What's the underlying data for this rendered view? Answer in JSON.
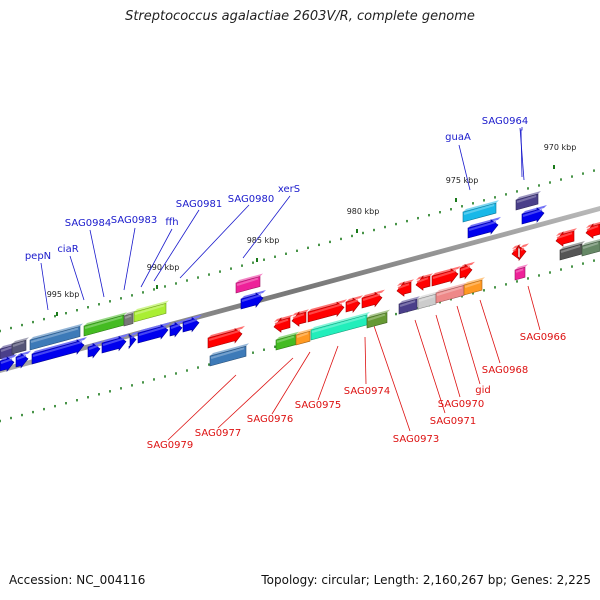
{
  "title": "Streptococcus agalactiae 2603V/R, complete genome",
  "footer": {
    "accession": "Accession: NC_004116",
    "summary": "Topology: circular; Length: 2,160,267 bp; Genes: 2,225"
  },
  "colors": {
    "forward_labels": "#1a1acc",
    "reverse_labels": "#dd1111",
    "backbone": "#808080",
    "ticks": "#1a7a1a"
  },
  "ticks": [
    "970 kbp",
    "975 kbp",
    "980 kbp",
    "985 kbp",
    "990 kbp",
    "995 kbp"
  ],
  "forward_genes": [
    "SAG0964",
    "guaA",
    "xerS",
    "SAG0980",
    "SAG0981",
    "ffh",
    "SAG0983",
    "SAG0984",
    "ciaR",
    "pepN"
  ],
  "reverse_genes": [
    "SAG0966",
    "SAG0968",
    "gid",
    "SAG0970",
    "SAG0971",
    "SAG0973",
    "SAG0974",
    "SAG0975",
    "SAG0976",
    "SAG0977",
    "SAG0979"
  ]
}
